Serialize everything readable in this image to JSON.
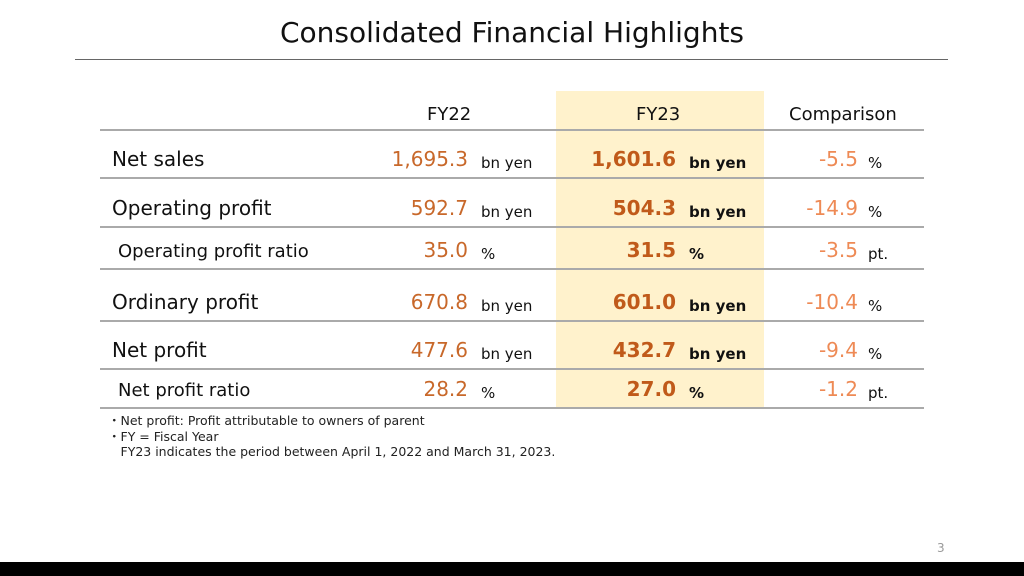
{
  "title": "Consolidated Financial Highlights",
  "headers": {
    "fy22": "FY22",
    "fy23": "FY23",
    "comparison": "Comparison"
  },
  "rows": [
    {
      "label": "Net sales",
      "fy22": "1,695.3",
      "fy22_unit": "bn yen",
      "fy23": "1,601.6",
      "fy23_unit": "bn yen",
      "comp": "-5.5",
      "comp_unit": "%"
    },
    {
      "label": "Operating profit",
      "fy22": "592.7",
      "fy22_unit": "bn yen",
      "fy23": "504.3",
      "fy23_unit": "bn yen",
      "comp": "-14.9",
      "comp_unit": "%"
    },
    {
      "label": "Operating profit ratio",
      "fy22": "35.0",
      "fy22_unit": "%",
      "fy23": "31.5",
      "fy23_unit": "%",
      "comp": "-3.5",
      "comp_unit": "pt."
    },
    {
      "label": "Ordinary profit",
      "fy22": "670.8",
      "fy22_unit": "bn yen",
      "fy23": "601.0",
      "fy23_unit": "bn yen",
      "comp": "-10.4",
      "comp_unit": "%"
    },
    {
      "label": "Net profit",
      "fy22": "477.6",
      "fy22_unit": "bn yen",
      "fy23": "432.7",
      "fy23_unit": "bn yen",
      "comp": "-9.4",
      "comp_unit": "%"
    },
    {
      "label": "Net profit ratio",
      "fy22": "28.2",
      "fy22_unit": "%",
      "fy23": "27.0",
      "fy23_unit": "%",
      "comp": "-1.2",
      "comp_unit": "pt."
    }
  ],
  "notes": [
    "・Net profit: Profit attributable to owners of parent",
    "・FY = Fiscal Year",
    "　FY23 indicates the period between April 1, 2022 and March 31, 2023."
  ],
  "page_number": "3",
  "colors": {
    "fy22": "#c8682a",
    "fy23": "#c05a1a",
    "comparison": "#ee8a55",
    "highlight": "#fff2cc"
  }
}
